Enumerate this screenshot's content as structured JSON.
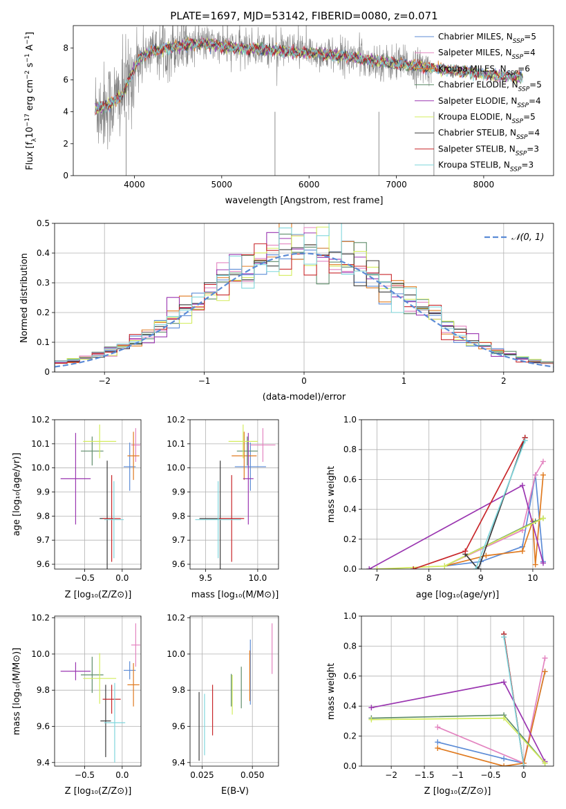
{
  "figure_title": "PLATE=1697, MJD=53142, FIBERID=0080, z=0.071",
  "colors": {
    "Chabrier MILES": "#5b8bd6",
    "Salpeter MILES": "#e384c0",
    "Kroupa MILES": "#e07a1f",
    "Chabrier ELODIE": "#5e8c6a",
    "Salpeter ELODIE": "#9a35b0",
    "Kroupa ELODIE": "#d3ec5c",
    "Chabrier STELIB": "#3a3a3a",
    "Salpeter STELIB": "#c8262a",
    "Kroupa STELIB": "#7fd6dc",
    "data": "#808080",
    "normal": "#5b8bd6"
  },
  "chart_data": [
    {
      "id": "spectrum",
      "type": "line",
      "title": "PLATE=1697, MJD=53142, FIBERID=0080, z=0.071",
      "xlabel": "wavelength [Angstrom, rest frame]",
      "ylabel": "Flux [fλ10⁻¹⁷ erg cm⁻² s⁻¹ A⁻¹]",
      "xlim": [
        3300,
        8800
      ],
      "ylim": [
        0,
        9.4
      ],
      "xticks": [
        4000,
        5000,
        6000,
        7000,
        8000
      ],
      "yticks": [
        0,
        2,
        4,
        6,
        8
      ],
      "legend_position": "right",
      "legend": [
        "Chabrier MILES, N_SSP=5",
        "Salpeter MILES, N_SSP=4",
        "Kroupa MILES, N_SSP=6",
        "Chabrier ELODIE, N_SSP=5",
        "Salpeter ELODIE, N_SSP=4",
        "Kroupa ELODIE, N_SSP=5",
        "Chabrier STELIB, N_SSP=4",
        "Salpeter STELIB, N_SSP=3",
        "Kroupa STELIB, N_SSP=3"
      ],
      "continuum": {
        "x": [
          3550,
          3650,
          3750,
          3850,
          3950,
          4050,
          4200,
          4400,
          4600,
          4800,
          5000,
          5200,
          5500,
          5800,
          6100,
          6400,
          6700,
          7000,
          7200,
          7400,
          7600,
          7800,
          8000,
          8200,
          8450
        ],
        "y": [
          4.2,
          4.3,
          4.6,
          5.0,
          6.1,
          7.3,
          7.8,
          8.0,
          8.2,
          8.3,
          8.1,
          8.0,
          7.9,
          7.75,
          7.65,
          7.5,
          7.2,
          7.0,
          6.9,
          6.75,
          6.6,
          6.5,
          6.35,
          6.25,
          6.15
        ]
      },
      "data_x_range": [
        3550,
        7400
      ],
      "model_x_range": [
        3550,
        8450
      ]
    },
    {
      "id": "residuals",
      "type": "histogram",
      "xlabel": "(data-model)/error",
      "ylabel": "Normed distribution",
      "xlim": [
        -2.5,
        2.5
      ],
      "ylim": [
        0,
        0.5
      ],
      "xticks": [
        -2,
        -1,
        0,
        1,
        2
      ],
      "yticks": [
        0,
        0.1,
        0.2,
        0.3,
        0.4,
        0.5
      ],
      "legend": [
        "𝒩(0, 1)"
      ],
      "legend_position": "top-right",
      "bin_width": 0.125,
      "bin_start": -2.5,
      "grid": true
    },
    {
      "id": "age_vs_Z",
      "type": "errorbar",
      "xlabel": "Z [log₁₀(Z/Z⊙)]",
      "ylabel": "age [log₁₀(age/yr)]",
      "xlim": [
        -0.9,
        0.25
      ],
      "ylim": [
        9.58,
        10.2
      ],
      "xticks": [
        -0.5,
        0.0
      ],
      "yticks": [
        9.6,
        9.7,
        9.8,
        9.9,
        10.0,
        10.1,
        10.2
      ],
      "grid": true,
      "points": [
        {
          "model": "Chabrier MILES",
          "x": 0.1,
          "y": 10.005,
          "xerr": 0.08,
          "yerr": 0.1
        },
        {
          "model": "Salpeter MILES",
          "x": 0.18,
          "y": 10.095,
          "xerr": 0.06,
          "yerr": 0.07
        },
        {
          "model": "Kroupa MILES",
          "x": 0.15,
          "y": 10.05,
          "xerr": 0.08,
          "yerr": 0.1
        },
        {
          "model": "Chabrier ELODIE",
          "x": -0.4,
          "y": 10.07,
          "xerr": 0.15,
          "yerr": 0.06
        },
        {
          "model": "Salpeter ELODIE",
          "x": -0.62,
          "y": 9.955,
          "xerr": 0.2,
          "yerr": 0.19
        },
        {
          "model": "Kroupa ELODIE",
          "x": -0.3,
          "y": 10.11,
          "xerr": 0.22,
          "yerr": 0.07
        },
        {
          "model": "Chabrier STELIB",
          "x": -0.2,
          "y": 9.79,
          "xerr": 0.1,
          "yerr": 0.24
        },
        {
          "model": "Salpeter STELIB",
          "x": -0.14,
          "y": 9.79,
          "xerr": 0.12,
          "yerr": 0.18
        },
        {
          "model": "Kroupa STELIB",
          "x": -0.11,
          "y": 9.785,
          "xerr": 0.13,
          "yerr": 0.16
        }
      ]
    },
    {
      "id": "age_vs_mass",
      "type": "errorbar",
      "xlabel": "mass [log₁₀(M/M⊙)]",
      "ylabel": "",
      "xlim": [
        9.35,
        10.2
      ],
      "ylim": [
        9.58,
        10.2
      ],
      "xticks": [
        9.5,
        10.0
      ],
      "yticks": [
        9.6,
        9.7,
        9.8,
        9.9,
        10.0,
        10.1,
        10.2
      ],
      "grid": true,
      "points": [
        {
          "model": "Chabrier MILES",
          "x": 9.93,
          "y": 10.005,
          "xerr": 0.15,
          "yerr": 0.1
        },
        {
          "model": "Salpeter MILES",
          "x": 10.05,
          "y": 10.095,
          "xerr": 0.12,
          "yerr": 0.07
        },
        {
          "model": "Kroupa MILES",
          "x": 9.87,
          "y": 10.05,
          "xerr": 0.12,
          "yerr": 0.1
        },
        {
          "model": "Chabrier ELODIE",
          "x": 9.9,
          "y": 10.07,
          "xerr": 0.1,
          "yerr": 0.06
        },
        {
          "model": "Salpeter ELODIE",
          "x": 9.91,
          "y": 9.955,
          "xerr": 0.05,
          "yerr": 0.19
        },
        {
          "model": "Kroupa ELODIE",
          "x": 9.86,
          "y": 10.11,
          "xerr": 0.14,
          "yerr": 0.07
        },
        {
          "model": "Chabrier STELIB",
          "x": 9.64,
          "y": 9.79,
          "xerr": 0.2,
          "yerr": 0.24
        },
        {
          "model": "Salpeter STELIB",
          "x": 9.75,
          "y": 9.79,
          "xerr": 0.12,
          "yerr": 0.18
        },
        {
          "model": "Kroupa STELIB",
          "x": 9.62,
          "y": 9.785,
          "xerr": 0.22,
          "yerr": 0.16
        }
      ]
    },
    {
      "id": "weight_vs_age",
      "type": "line",
      "xlabel": "age  [log₁₀(age/yr)]",
      "ylabel": "mass weight",
      "xlim": [
        6.7,
        10.4
      ],
      "ylim": [
        0,
        1.0
      ],
      "xticks": [
        7,
        8,
        9,
        10
      ],
      "yticks": [
        0,
        0.2,
        0.4,
        0.6,
        0.8,
        1.0
      ],
      "grid": true,
      "series": [
        {
          "model": "Chabrier MILES",
          "x": [
            8.3,
            9.0,
            9.8,
            10.05,
            10.2
          ],
          "y": [
            0.02,
            0.05,
            0.15,
            0.63,
            0.05
          ]
        },
        {
          "model": "Salpeter MILES",
          "x": [
            8.3,
            9.8,
            10.05,
            10.2
          ],
          "y": [
            0.02,
            0.26,
            0.63,
            0.72
          ]
        },
        {
          "model": "Kroupa MILES",
          "x": [
            8.3,
            9.1,
            9.8,
            10.0,
            10.05,
            10.2
          ],
          "y": [
            0.02,
            0.09,
            0.12,
            0.32,
            0.03,
            0.63
          ]
        },
        {
          "model": "Chabrier ELODIE",
          "x": [
            8.3,
            10.05,
            10.2
          ],
          "y": [
            0.02,
            0.32,
            0.34
          ]
        },
        {
          "model": "Salpeter ELODIE",
          "x": [
            6.85,
            9.8,
            10.2
          ],
          "y": [
            0.0,
            0.56,
            0.04
          ]
        },
        {
          "model": "Kroupa ELODIE",
          "x": [
            7.0,
            8.3,
            10.2
          ],
          "y": [
            0.0,
            0.02,
            0.34
          ]
        },
        {
          "model": "Chabrier STELIB",
          "x": [
            8.7,
            8.95,
            9.85
          ],
          "y": [
            0.1,
            0.0,
            0.88
          ]
        },
        {
          "model": "Salpeter STELIB",
          "x": [
            7.7,
            8.7,
            9.85
          ],
          "y": [
            0.0,
            0.12,
            0.88
          ]
        },
        {
          "model": "Kroupa STELIB",
          "x": [
            8.9,
            9.85
          ],
          "y": [
            0.0,
            0.86
          ]
        }
      ]
    },
    {
      "id": "mass_vs_Z",
      "type": "errorbar",
      "xlabel": "Z [log₁₀(Z/Z⊙)]",
      "ylabel": "mass [log₁₀(M/M⊙)]",
      "xlim": [
        -0.9,
        0.25
      ],
      "ylim": [
        9.38,
        10.21
      ],
      "xticks": [
        -0.5,
        0.0
      ],
      "yticks": [
        9.4,
        9.6,
        9.8,
        10.0,
        10.2
      ],
      "grid": true,
      "points": [
        {
          "model": "Chabrier MILES",
          "x": 0.1,
          "y": 9.91,
          "xerr": 0.08,
          "yerr": 0.05
        },
        {
          "model": "Salpeter MILES",
          "x": 0.18,
          "y": 10.05,
          "xerr": 0.06,
          "yerr": 0.12
        },
        {
          "model": "Kroupa MILES",
          "x": 0.15,
          "y": 9.83,
          "xerr": 0.08,
          "yerr": 0.12
        },
        {
          "model": "Chabrier ELODIE",
          "x": -0.4,
          "y": 9.885,
          "xerr": 0.15,
          "yerr": 0.1
        },
        {
          "model": "Salpeter ELODIE",
          "x": -0.62,
          "y": 9.905,
          "xerr": 0.2,
          "yerr": 0.05
        },
        {
          "model": "Kroupa ELODIE",
          "x": -0.3,
          "y": 9.865,
          "xerr": 0.22,
          "yerr": 0.14
        },
        {
          "model": "Chabrier STELIB",
          "x": -0.22,
          "y": 9.63,
          "xerr": 0.07,
          "yerr": 0.2
        },
        {
          "model": "Salpeter STELIB",
          "x": -0.14,
          "y": 9.75,
          "xerr": 0.12,
          "yerr": 0.08
        },
        {
          "model": "Kroupa STELIB",
          "x": -0.1,
          "y": 9.62,
          "xerr": 0.14,
          "yerr": 0.22
        }
      ]
    },
    {
      "id": "mass_vs_ebv",
      "type": "errorbar",
      "xlabel": "E(B-V)",
      "ylabel": "",
      "xlim": [
        0.019,
        0.063
      ],
      "ylim": [
        9.38,
        10.21
      ],
      "xticks": [
        0.025,
        0.05
      ],
      "yticks": [
        9.4,
        9.6,
        9.8,
        10.0,
        10.2
      ],
      "grid": true,
      "points": [
        {
          "model": "Chabrier STELIB",
          "x": 0.0235,
          "y": 9.6,
          "xerr": 0,
          "yerr": 0.19
        },
        {
          "model": "Kroupa STELIB",
          "x": 0.0262,
          "y": 9.61,
          "xerr": 0,
          "yerr": 0.17
        },
        {
          "model": "Salpeter STELIB",
          "x": 0.0302,
          "y": 9.69,
          "xerr": 0,
          "yerr": 0.14
        },
        {
          "model": "Chabrier ELODIE",
          "x": 0.0395,
          "y": 9.8,
          "xerr": 0,
          "yerr": 0.09
        },
        {
          "model": "Kroupa ELODIE",
          "x": 0.04,
          "y": 9.775,
          "xerr": 0,
          "yerr": 0.11
        },
        {
          "model": "Chabrier ELODIE",
          "x": 0.0445,
          "y": 9.815,
          "xerr": 0,
          "yerr": 0.115
        },
        {
          "model": "Chabrier MILES",
          "x": 0.049,
          "y": 9.9,
          "xerr": 0,
          "yerr": 0.18
        },
        {
          "model": "Kroupa MILES",
          "x": 0.0487,
          "y": 9.88,
          "xerr": 0,
          "yerr": 0.14
        },
        {
          "model": "Salpeter MILES",
          "x": 0.0598,
          "y": 10.03,
          "xerr": 0,
          "yerr": 0.14
        }
      ]
    },
    {
      "id": "weight_vs_Z",
      "type": "line",
      "xlabel": "Z [log₁₀(Z/Z⊙)]",
      "ylabel": "mass weight",
      "xlim": [
        -2.45,
        0.45
      ],
      "ylim": [
        0,
        1.0
      ],
      "xticks": [
        -2.0,
        -1.5,
        -1.0,
        -0.5,
        0.0
      ],
      "yticks": [
        0,
        0.2,
        0.4,
        0.6,
        0.8,
        1.0
      ],
      "grid": true,
      "series": [
        {
          "model": "Chabrier MILES",
          "x": [
            -1.3,
            -0.3,
            0.0,
            0.32
          ],
          "y": [
            0.16,
            0.05,
            0.02,
            0.63
          ]
        },
        {
          "model": "Salpeter MILES",
          "x": [
            -1.3,
            0.0,
            0.32
          ],
          "y": [
            0.26,
            0.02,
            0.72
          ]
        },
        {
          "model": "Kroupa MILES",
          "x": [
            -1.3,
            -0.3,
            0.0,
            0.32
          ],
          "y": [
            0.12,
            0.0,
            0.02,
            0.63
          ]
        },
        {
          "model": "Chabrier ELODIE",
          "x": [
            -2.3,
            -0.3,
            0.32
          ],
          "y": [
            0.32,
            0.34,
            0.02
          ]
        },
        {
          "model": "Salpeter ELODIE",
          "x": [
            -2.3,
            -0.3,
            0.32
          ],
          "y": [
            0.39,
            0.56,
            0.03
          ]
        },
        {
          "model": "Kroupa ELODIE",
          "x": [
            -2.3,
            -0.3,
            0.32
          ],
          "y": [
            0.31,
            0.32,
            0.02
          ]
        },
        {
          "model": "Chabrier STELIB",
          "x": [
            -0.3,
            0.0
          ],
          "y": [
            0.88,
            0.0
          ]
        },
        {
          "model": "Salpeter STELIB",
          "x": [
            -0.3,
            0.0
          ],
          "y": [
            0.88,
            0.0
          ]
        },
        {
          "model": "Kroupa STELIB",
          "x": [
            -0.3,
            0.0
          ],
          "y": [
            0.86,
            0.0
          ]
        }
      ]
    }
  ]
}
